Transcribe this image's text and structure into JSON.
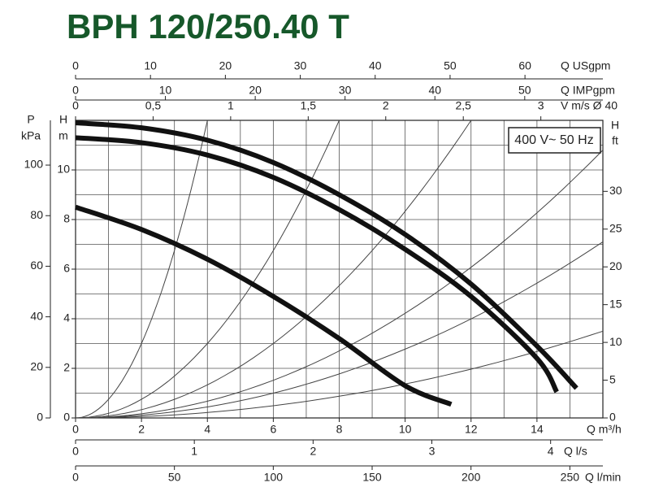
{
  "chart_data": {
    "type": "line",
    "title": "BPH 120/250.40 T",
    "annotation": "400 V~ 50 Hz",
    "x_label": "Q m³/h",
    "xlim": [
      0,
      16
    ],
    "xticks": [
      0,
      2,
      4,
      6,
      8,
      10,
      12,
      14
    ],
    "x_minor_ticks": [
      1,
      3,
      5,
      7,
      9,
      11,
      13,
      15,
      16
    ],
    "y_label": "H",
    "y_unit": "m",
    "ylim": [
      0,
      12
    ],
    "yticks": [
      0,
      2,
      4,
      6,
      8,
      10
    ],
    "y_minor_ticks": [
      1,
      3,
      5,
      7,
      9,
      11,
      12
    ],
    "grid": true,
    "p_axis": {
      "label": "P",
      "unit": "kPa",
      "lim": [
        0,
        117.7
      ],
      "ticks": [
        0,
        20,
        40,
        60,
        80,
        100
      ]
    },
    "ft_axis": {
      "label": "H",
      "unit": "ft",
      "lim": [
        0,
        39.4
      ],
      "ticks": [
        0,
        5,
        10,
        15,
        20,
        25,
        30
      ]
    },
    "top_axes": [
      {
        "label": "Q USgpm",
        "lim": [
          0,
          70.4
        ],
        "ticks": [
          0,
          10,
          20,
          30,
          40,
          50,
          60
        ]
      },
      {
        "label": "Q IMPgpm",
        "lim": [
          0,
          58.7
        ],
        "ticks": [
          0,
          10,
          20,
          30,
          40,
          50
        ]
      },
      {
        "label": "V m/s Ø 40",
        "lim": [
          0,
          3.4
        ],
        "ticks": [
          0,
          {
            "value": 0.5,
            "label": "0,5"
          },
          1,
          {
            "value": 1.5,
            "label": "1,5"
          },
          2,
          {
            "value": 2.5,
            "label": "2,5"
          },
          3
        ]
      }
    ],
    "bottom_axes": [
      {
        "label": "Q l/s",
        "lim": [
          0,
          4.44
        ],
        "ticks": [
          0,
          1,
          2,
          3,
          4
        ]
      },
      {
        "label": "Q l/min",
        "lim": [
          0,
          266.7
        ],
        "ticks": [
          0,
          50,
          100,
          150,
          200,
          250
        ]
      }
    ],
    "series": [
      {
        "color": "#111111",
        "x": [
          0,
          2,
          4,
          6,
          8,
          10,
          12,
          14,
          15.2
        ],
        "values": [
          11.9,
          11.7,
          11.2,
          10.3,
          9.0,
          7.4,
          5.4,
          2.9,
          1.2
        ]
      },
      {
        "color": "#111111",
        "x": [
          0,
          2,
          4,
          6,
          8,
          10,
          12,
          14,
          14.6
        ],
        "values": [
          11.3,
          11.1,
          10.6,
          9.7,
          8.4,
          6.8,
          4.9,
          2.4,
          1.05
        ]
      },
      {
        "color": "#111111",
        "x": [
          0,
          2,
          4,
          6,
          8,
          10,
          11.4
        ],
        "values": [
          8.5,
          7.6,
          6.4,
          4.9,
          3.2,
          1.3,
          0.55
        ]
      }
    ],
    "system_curves": [
      {
        "x_end": 4,
        "h_end": 12
      },
      {
        "x_end": 8,
        "h_end": 12
      },
      {
        "x_end": 12,
        "h_end": 12
      },
      {
        "x_end": 16,
        "h_end": 10.8
      },
      {
        "x_end": 16,
        "h_end": 7.1
      },
      {
        "x_end": 16,
        "h_end": 3.5
      }
    ]
  }
}
